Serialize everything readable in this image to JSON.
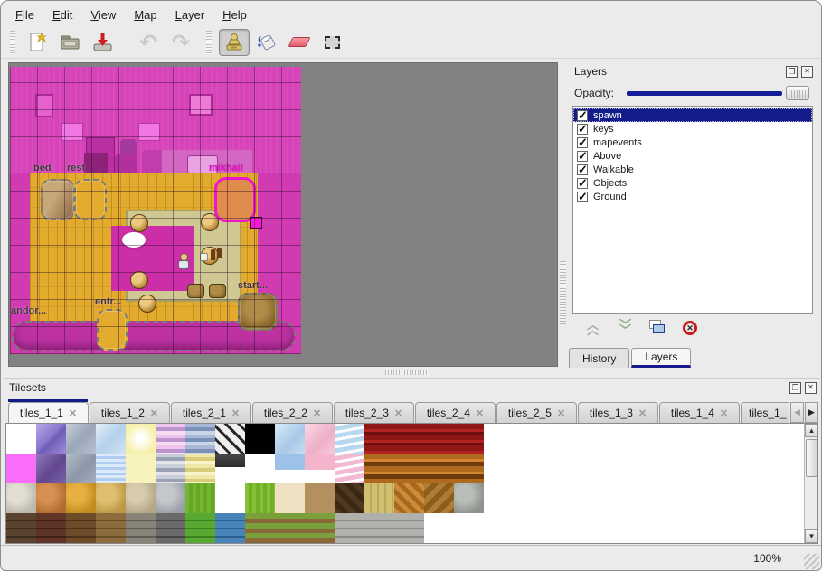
{
  "menu": {
    "items": [
      "File",
      "Edit",
      "View",
      "Map",
      "Layer",
      "Help"
    ]
  },
  "toolbar": {
    "buttons": [
      "new-file",
      "open-file",
      "save-file",
      "undo",
      "redo",
      "stamp-brush",
      "bucket-fill",
      "eraser",
      "rectangular-select"
    ],
    "active_tool": "stamp-brush"
  },
  "map_view": {
    "objects": [
      {
        "label": "bed"
      },
      {
        "label": "rest"
      },
      {
        "label": "mikhail"
      },
      {
        "label": "start..."
      },
      {
        "label": "entr..."
      },
      {
        "label": "andor..."
      }
    ],
    "selected_object": "mikhail"
  },
  "layers_panel": {
    "title": "Layers",
    "opacity_label": "Opacity:",
    "opacity_value_pct": 100,
    "layers": [
      {
        "name": "spawn",
        "checked": true,
        "selected": true
      },
      {
        "name": "keys",
        "checked": true,
        "selected": false
      },
      {
        "name": "mapevents",
        "checked": true,
        "selected": false
      },
      {
        "name": "Above",
        "checked": true,
        "selected": false
      },
      {
        "name": "Walkable",
        "checked": true,
        "selected": false
      },
      {
        "name": "Objects",
        "checked": true,
        "selected": false
      },
      {
        "name": "Ground",
        "checked": true,
        "selected": false
      }
    ],
    "buttons": [
      "raise-layer",
      "lower-layer",
      "duplicate-layer",
      "delete-layer"
    ],
    "tabs": [
      "History",
      "Layers"
    ],
    "active_tab": "Layers"
  },
  "tilesets_panel": {
    "title": "Tilesets",
    "tabs": [
      "tiles_1_1",
      "tiles_1_2",
      "tiles_2_1",
      "tiles_2_2",
      "tiles_2_3",
      "tiles_2_4",
      "tiles_2_5",
      "tiles_1_3",
      "tiles_1_4",
      "tiles_1_"
    ],
    "active_tab": "tiles_1_1",
    "tiles": [
      [
        "#ffffff",
        "linear-gradient(135deg,#b7a8e8 0%,#8a77cc 45%,#6f5cb8 55%,#9d8cd8 100%)",
        "linear-gradient(135deg,#c6ced8 0%,#9aa6b8 50%,#b6c0ce 100%)",
        "linear-gradient(135deg,#e4f0fa 0%,#b4d0ea 50%,#cfe2f4 100%)",
        "radial-gradient(circle,#ffffff 15%,#f6f0a8 75%)",
        "repeating-linear-gradient(180deg,#ecc4ec 0 4px,#bc94d0 4px 8px,#f6dcf2 8px 12px)",
        "repeating-linear-gradient(180deg,#aab8d8 0 4px,#7a92ba 4px 8px,#cad6e8 8px 12px)",
        "repeating-linear-gradient(45deg,#2a2a2a 0 3px,#f0f0f0 3px 10px),repeating-linear-gradient(-45deg,#2a2a2a 0 3px,#f0f0f0 3px 10px)",
        "#000000",
        "linear-gradient(135deg,#d8eafa 0%,#a8c8e8 60%,#c8def2 100%)",
        "linear-gradient(135deg,#fad8e4 0%,#eeaec6 60%,#f8cede 100%)",
        "repeating-linear-gradient(170deg,#ffffff 0 3px,#b8d8f0 3px 8px)",
        "repeating-linear-gradient(180deg,#8f1616 0 6px,#b22222 6px 9px,#6e0f0f 9px 12px)",
        "repeating-linear-gradient(180deg,#8f1616 0 6px,#b22222 6px 9px,#6e0f0f 9px 12px)",
        "repeating-linear-gradient(180deg,#8f1616 0 6px,#b22222 6px 9px,#6e0f0f 9px 12px)",
        "repeating-linear-gradient(180deg,#8f1616 0 6px,#b22222 6px 9px,#6e0f0f 9px 12px)"
      ],
      [
        "#fa6cfa",
        "linear-gradient(135deg,#8f7ab8 0%,#62478f 55%,#7a62a6 100%)",
        "linear-gradient(135deg,#b4bcc8 0%,#8c96a8 55%,#a6aebc 100%)",
        "repeating-linear-gradient(180deg,#dceafc 0 3px,#aecdf0 3px 6px)",
        "#f8f2bc",
        "repeating-linear-gradient(180deg,#caced8 0 4px,#9aa0b4 4px 8px,#e2e4ea 8px 12px)",
        "repeating-linear-gradient(180deg,#f0e8a8 0 4px,#d8cc7a 4px 8px,#f8f4c8 8px 12px)",
        "linear-gradient(180deg,#484848 0%,#2e2e2e 45%,#ffffff 45%)",
        "#ffffff",
        "linear-gradient(180deg,#9cc2e8 0 55%,#ffffff 55%)",
        "linear-gradient(180deg,#f4b4cc 0 55%,#ffffff 55%)",
        "repeating-linear-gradient(170deg,#ffffff 0 3px,#f2b8d4 3px 8px)",
        "repeating-linear-gradient(180deg,#b06a1e 0 6px,#d38432 6px 9px,#6e3c0c 9px 14px)",
        "repeating-linear-gradient(180deg,#b06a1e 0 6px,#d38432 6px 9px,#6e3c0c 9px 14px)",
        "repeating-linear-gradient(180deg,#b06a1e 0 6px,#d38432 6px 9px,#6e3c0c 9px 14px)",
        "repeating-linear-gradient(180deg,#b06a1e 0 6px,#d38432 6px 9px,#6e3c0c 9px 14px)"
      ],
      [
        "radial-gradient(circle at 35% 35%,#e2ded2 0 30%,#bcb8ac 75%)",
        "radial-gradient(circle at 35% 35%,#d89050 0 30%,#b06c30 75%)",
        "radial-gradient(circle at 35% 35%,#e8b040 0 30%,#c08c20 75%)",
        "radial-gradient(circle at 35% 35%,#e0c070 0 30%,#bc9848 75%)",
        "radial-gradient(circle at 35% 35%,#d8ccb0 0 30%,#b4a888 75%)",
        "radial-gradient(circle at 35% 35%,#c4c8cc 0 30%,#9aa0a8 75%)",
        "repeating-linear-gradient(90deg,#74b62e 0 4px,#66a626 4px 8px)",
        "repeating-linear-gradient(45deg,#7ab4ec 0 6px,#５898d8 6px 12px)",
        "repeating-linear-gradient(90deg,#82c234 0 4px,#72ae28 4px 8px)",
        "#eee0c2",
        "#b49060",
        "repeating-linear-gradient(45deg,#503820 0 6px,#3a2814 6px 12px)",
        "repeating-linear-gradient(90deg,#d0c070 0 6px,#b8a858 6px 8px)",
        "repeating-linear-gradient(45deg,#cc8c3c 0 5px,#a8681c 5px 10px)",
        "repeating-linear-gradient(135deg,#b07c34 0 6px,#8c5c1c 6px 12px)",
        "radial-gradient(circle at 35% 35%,#b8beb8 0 30%,#8c928c 75%)"
      ],
      [
        "repeating-linear-gradient(180deg,#5a4430 0 7px,#3c2c1c 7px 9px)",
        "repeating-linear-gradient(180deg,#603426 0 7px,#402016 7px 9px)",
        "repeating-linear-gradient(180deg,#6e4c2a 0 7px,#4c3218 7px 9px)",
        "repeating-linear-gradient(180deg,#8c6c3c 0 7px,#665026 7px 9px)",
        "repeating-linear-gradient(180deg,#88847a 0 7px,#605c54 7px 9px)",
        "repeating-linear-gradient(180deg,#6a6a6a 0 7px,#464646 7px 9px)",
        "repeating-linear-gradient(180deg,#58a832 0 7px,#3c8020 7px 9px)",
        "repeating-linear-gradient(180deg,#4884b8 0 7px,#2c5c90 7px 9px)",
        "repeating-linear-gradient(180deg,#7aa03c 0 6px,#8a6838 6px 11px)",
        "repeating-linear-gradient(180deg,#7aa03c 0 6px,#8a6838 6px 11px)",
        "repeating-linear-gradient(180deg,#7aa03c 0 6px,#8a6838 6px 11px)",
        "repeating-linear-gradient(180deg,#b0b0ac 0 7px,#8a8a86 7px 9px)",
        "repeating-linear-gradient(180deg,#b0b0ac 0 7px,#8a8a86 7px 9px)",
        "repeating-linear-gradient(180deg,#b0b0ac 0 7px,#8a8a86 7px 9px)",
        "",
        ""
      ]
    ]
  },
  "status_bar": {
    "zoom_level": "100%"
  }
}
